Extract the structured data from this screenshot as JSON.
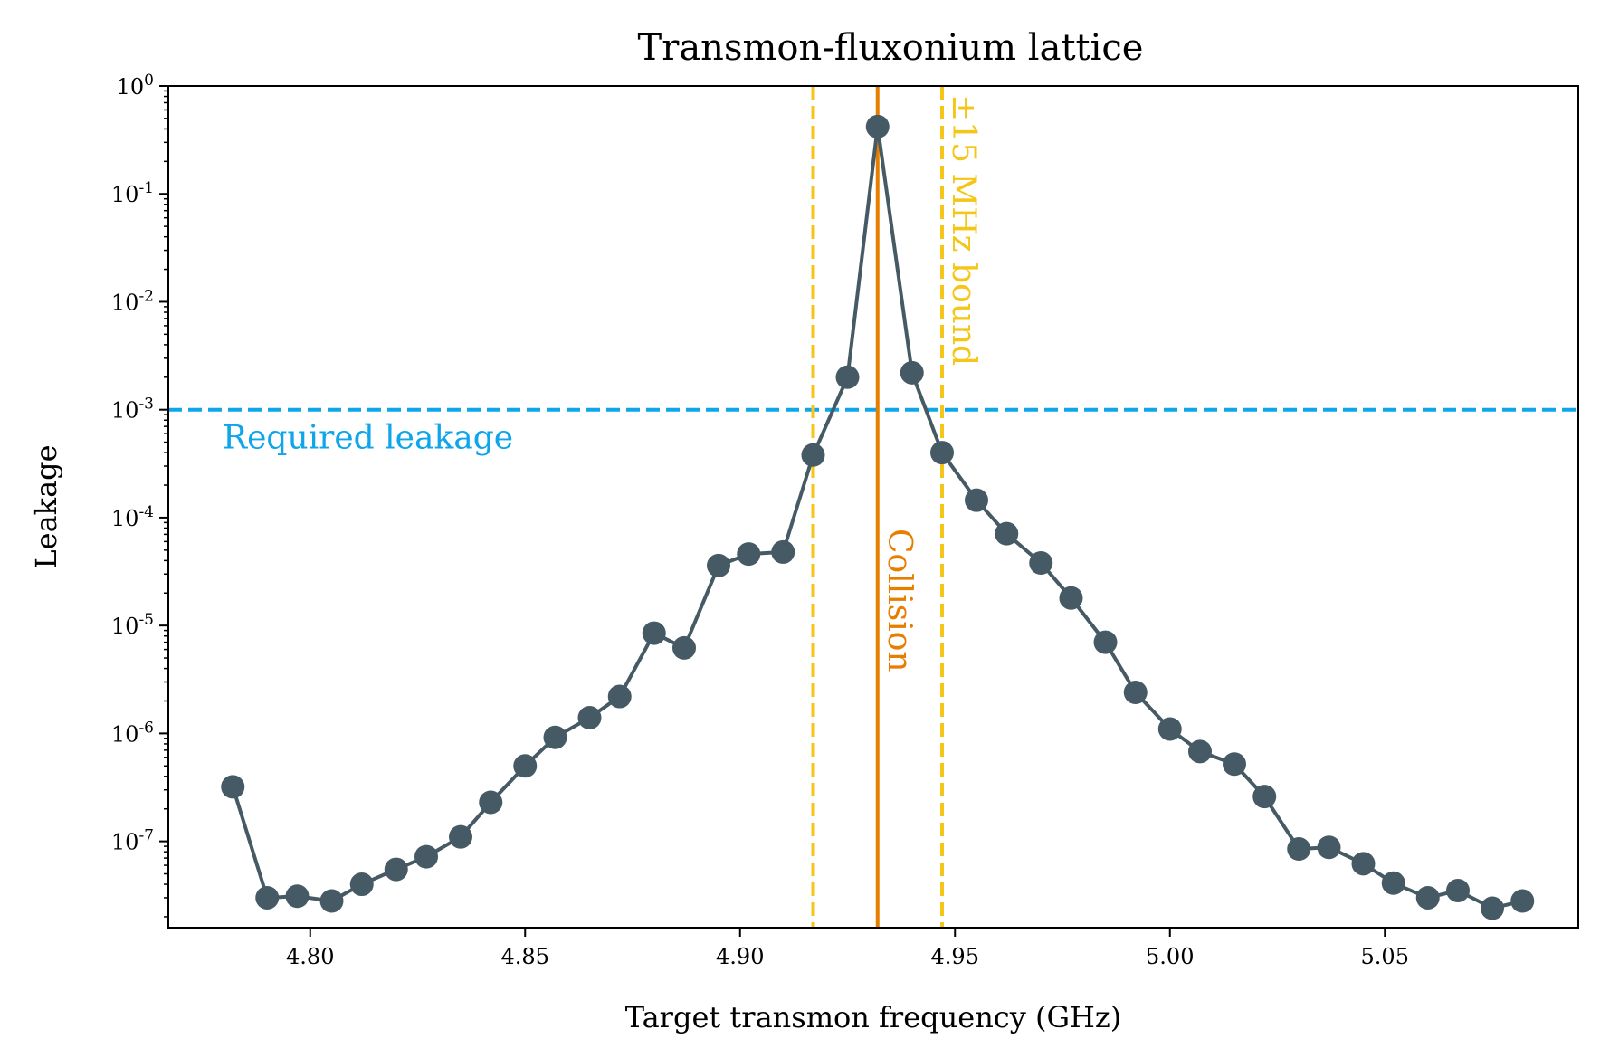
{
  "chart_data": {
    "type": "line",
    "title": "Transmon-fluxonium lattice",
    "xlabel": "Target transmon frequency (GHz)",
    "ylabel": "Leakage",
    "xlim": [
      4.767,
      5.095
    ],
    "ylim_log10": [
      -7.8,
      0
    ],
    "xticks": [
      {
        "v": 4.8,
        "label": "4.80"
      },
      {
        "v": 4.85,
        "label": "4.85"
      },
      {
        "v": 4.9,
        "label": "4.90"
      },
      {
        "v": 4.95,
        "label": "4.95"
      },
      {
        "v": 5.0,
        "label": "5.00"
      },
      {
        "v": 5.05,
        "label": "5.05"
      }
    ],
    "yticks": [
      {
        "exp": 0,
        "base": "10",
        "sup": "0"
      },
      {
        "exp": -1,
        "base": "10",
        "sup": "-1"
      },
      {
        "exp": -2,
        "base": "10",
        "sup": "-2"
      },
      {
        "exp": -3,
        "base": "10",
        "sup": "-3"
      },
      {
        "exp": -4,
        "base": "10",
        "sup": "-4"
      },
      {
        "exp": -5,
        "base": "10",
        "sup": "-5"
      },
      {
        "exp": -6,
        "base": "10",
        "sup": "-6"
      },
      {
        "exp": -7,
        "base": "10",
        "sup": "-7"
      }
    ],
    "series": [
      {
        "name": "leakage",
        "color": "#455a64",
        "x": [
          4.782,
          4.79,
          4.797,
          4.805,
          4.812,
          4.82,
          4.827,
          4.835,
          4.842,
          4.85,
          4.857,
          4.865,
          4.872,
          4.88,
          4.887,
          4.895,
          4.902,
          4.91,
          4.917,
          4.925,
          4.932,
          4.94,
          4.947,
          4.955,
          4.962,
          4.97,
          4.977,
          4.985,
          4.992,
          5.0,
          5.007,
          5.015,
          5.022,
          5.03,
          5.037,
          5.045,
          5.052,
          5.06,
          5.067,
          5.075,
          5.082
        ],
        "y": [
          3.2e-07,
          3e-08,
          3.1e-08,
          2.8e-08,
          4e-08,
          5.5e-08,
          7.2e-08,
          1.1e-07,
          2.3e-07,
          5e-07,
          9.2e-07,
          1.4e-06,
          2.2e-06,
          8.5e-06,
          6.2e-06,
          3.6e-05,
          4.6e-05,
          4.8e-05,
          0.00038,
          0.002,
          0.42,
          0.0022,
          0.0004,
          0.000145,
          7.1e-05,
          3.8e-05,
          1.8e-05,
          7e-06,
          2.4e-06,
          1.1e-06,
          6.8e-07,
          5.2e-07,
          2.6e-07,
          8.5e-08,
          8.8e-08,
          6.2e-08,
          4.1e-08,
          3e-08,
          3.5e-08,
          2.4e-08,
          2.8e-08
        ]
      }
    ],
    "reference_lines": {
      "required": {
        "y": 0.001,
        "label": "Required leakage",
        "color": "#0ea5e9"
      },
      "collision": {
        "x": 4.932,
        "label": "Collision",
        "color": "#e67e00"
      },
      "bounds": {
        "x": [
          4.917,
          4.947
        ],
        "label": "±15 MHz bound",
        "color": "#f5c518"
      }
    }
  }
}
